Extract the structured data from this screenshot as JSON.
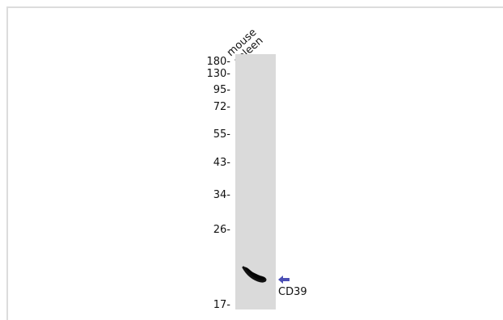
{
  "blot": {
    "lane_label": [
      "mouse",
      "spleen"
    ],
    "markers_kda": [
      "180-",
      "130-",
      "95-",
      "72-",
      "55-",
      "43-",
      "34-",
      "26-",
      "17-"
    ],
    "band": {
      "target": "CD39"
    },
    "arrow_color": "#4b4fb5",
    "lane_color": "#dadada"
  }
}
